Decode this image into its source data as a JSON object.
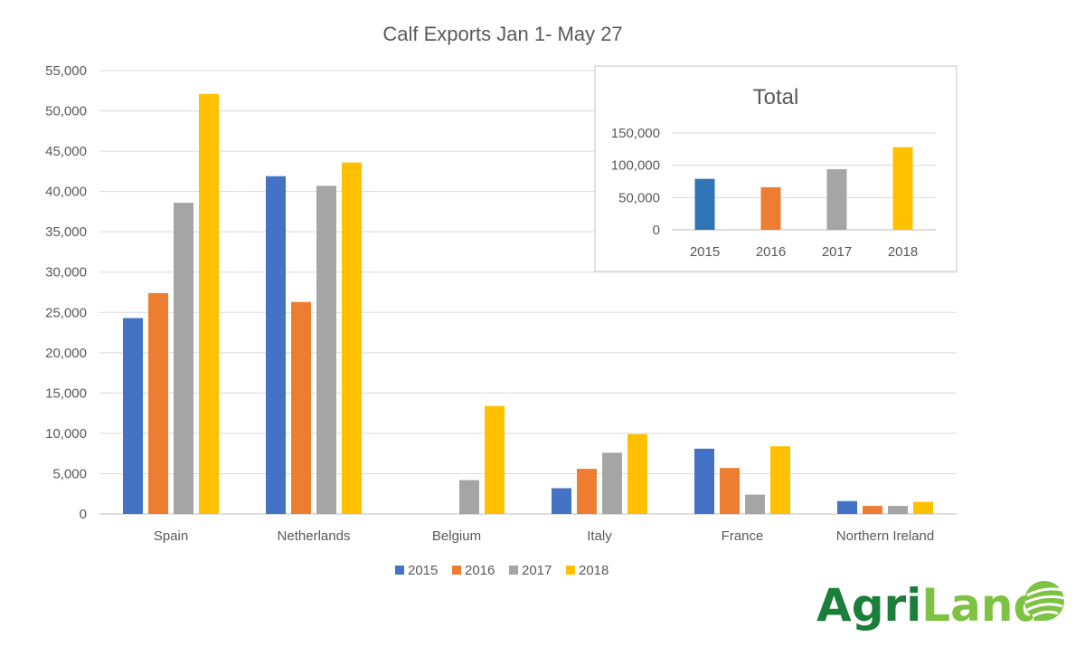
{
  "chart_data": [
    {
      "type": "bar",
      "title": "Calf Exports Jan 1- May 27",
      "categories": [
        "Spain",
        "Netherlands",
        "Belgium",
        "Italy",
        "France",
        "Northern Ireland"
      ],
      "series": [
        {
          "name": "2015",
          "color": "#4472C4",
          "values": [
            24300,
            41900,
            0,
            3200,
            8100,
            1600
          ]
        },
        {
          "name": "2016",
          "color": "#ED7D31",
          "values": [
            27400,
            26300,
            0,
            5600,
            5700,
            1000
          ]
        },
        {
          "name": "2017",
          "color": "#A5A5A5",
          "values": [
            38600,
            40700,
            4200,
            7600,
            2400,
            1000
          ]
        },
        {
          "name": "2018",
          "color": "#FFC000",
          "values": [
            52100,
            43600,
            13400,
            9900,
            8400,
            1500
          ]
        }
      ],
      "yticks": [
        "0",
        "5,000",
        "10,000",
        "15,000",
        "20,000",
        "25,000",
        "30,000",
        "35,000",
        "40,000",
        "45,000",
        "50,000",
        "55,000"
      ],
      "ylim": [
        0,
        55000
      ],
      "grid": true,
      "legend_position": "bottom"
    },
    {
      "type": "bar",
      "title": "Total",
      "categories": [
        "2015",
        "2016",
        "2017",
        "2018"
      ],
      "values": [
        79000,
        66000,
        94000,
        128000
      ],
      "colors": [
        "#2E75B6",
        "#ED7D31",
        "#A5A5A5",
        "#FFC000"
      ],
      "yticks": [
        "0",
        "50,000",
        "100,000",
        "150,000"
      ],
      "ylim": [
        0,
        150000
      ],
      "grid": true
    }
  ],
  "logo": {
    "text_dark": "Agri",
    "text_light": "Land",
    "color_dark": "#1B7F3B",
    "color_light": "#7DC242"
  }
}
